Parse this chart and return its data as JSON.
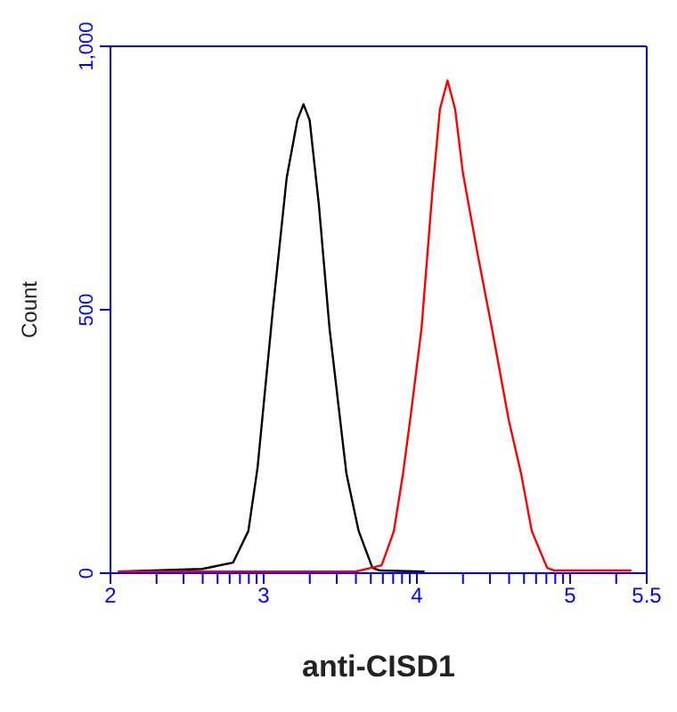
{
  "chart_data": {
    "type": "line",
    "xlabel": "anti-CISD1",
    "ylabel": "Count",
    "xlim": [
      2,
      5.5
    ],
    "ylim": [
      0,
      1000
    ],
    "xticks": [
      2,
      {
        "value": 2.301,
        "label": null
      },
      {
        "value": 2.477,
        "label": null
      },
      {
        "value": 2.602,
        "label": null
      },
      {
        "value": 2.699,
        "label": null
      },
      {
        "value": 2.778,
        "label": null
      },
      {
        "value": 2.845,
        "label": null
      },
      {
        "value": 2.903,
        "label": null
      },
      {
        "value": 2.954,
        "label": null
      },
      3,
      {
        "value": 3.301,
        "label": null
      },
      {
        "value": 3.477,
        "label": null
      },
      {
        "value": 3.602,
        "label": null
      },
      {
        "value": 3.699,
        "label": null
      },
      {
        "value": 3.778,
        "label": null
      },
      {
        "value": 3.845,
        "label": null
      },
      {
        "value": 3.903,
        "label": null
      },
      {
        "value": 3.954,
        "label": null
      },
      4,
      {
        "value": 4.301,
        "label": null
      },
      {
        "value": 4.477,
        "label": null
      },
      {
        "value": 4.602,
        "label": null
      },
      {
        "value": 4.699,
        "label": null
      },
      {
        "value": 4.778,
        "label": null
      },
      {
        "value": 4.845,
        "label": null
      },
      {
        "value": 4.903,
        "label": null
      },
      {
        "value": 4.954,
        "label": null
      },
      5,
      {
        "value": 5.301,
        "label": null
      },
      5.5
    ],
    "yticks": [
      0,
      500,
      {
        "value": 1000,
        "label": "1,000"
      }
    ],
    "marker": "none",
    "line_style": "solid",
    "series": [
      {
        "color": "#000000",
        "x": [
          2.05,
          2.6,
          2.8,
          2.9,
          2.96,
          3.06,
          3.15,
          3.22,
          3.26,
          3.3,
          3.36,
          3.43,
          3.54,
          3.62,
          3.71,
          3.76,
          4.05
        ],
        "values": [
          3,
          8,
          20,
          80,
          200,
          500,
          750,
          860,
          890,
          860,
          700,
          464,
          189,
          80,
          10,
          5,
          3
        ]
      },
      {
        "color": "#ff0000",
        "x": [
          2.05,
          3.6,
          3.7,
          3.77,
          3.85,
          3.91,
          3.96,
          4.03,
          4.1,
          4.15,
          4.2,
          4.25,
          4.3,
          4.4,
          4.49,
          4.6,
          4.68,
          4.75,
          4.85,
          4.9,
          5.4
        ],
        "values": [
          3,
          3,
          10,
          15,
          80,
          190,
          300,
          464,
          720,
          880,
          935,
          880,
          760,
          600,
          464,
          290,
          189,
          80,
          10,
          5,
          5
        ]
      }
    ]
  }
}
